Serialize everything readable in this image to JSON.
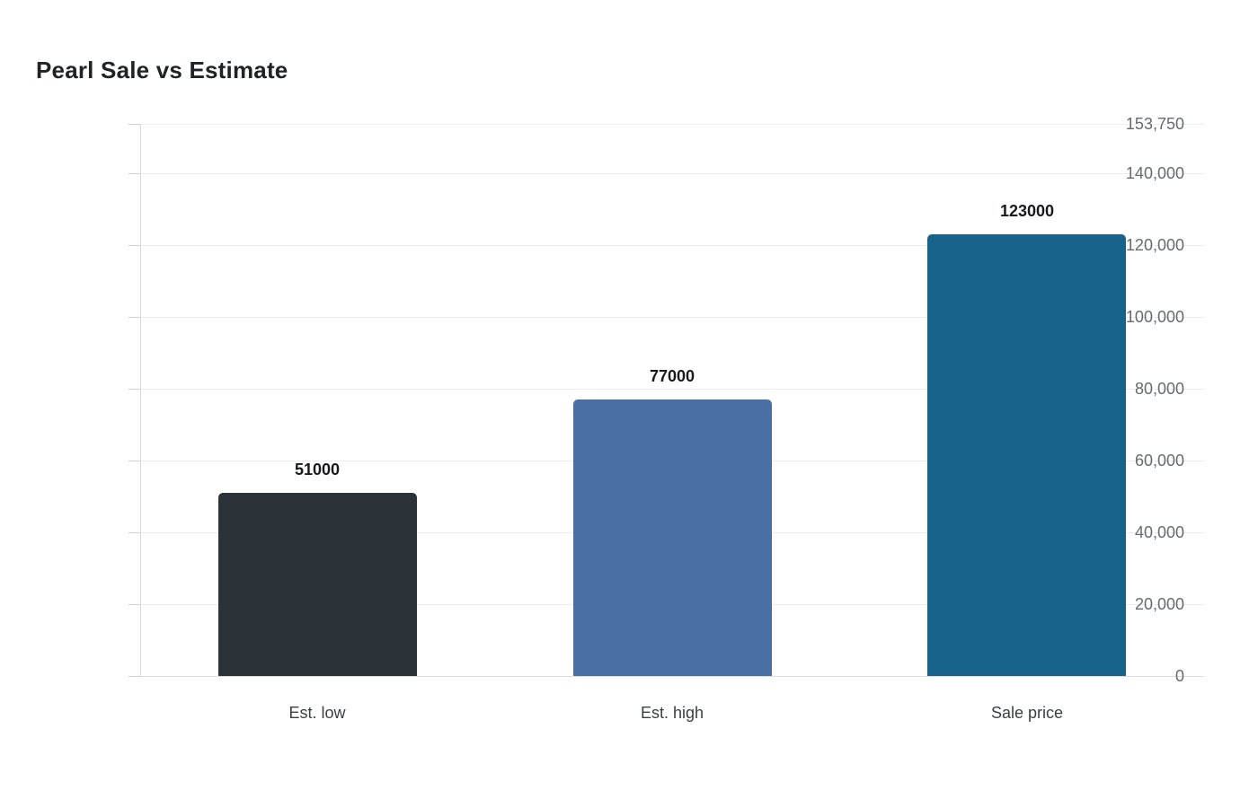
{
  "page": {
    "background_color": "#ffffff"
  },
  "chart_data": {
    "type": "bar",
    "title": "Pearl Sale vs Estimate",
    "categories": [
      "Est. low",
      "Est. high",
      "Sale price"
    ],
    "values": [
      51000,
      77000,
      123000
    ],
    "value_labels": [
      "51000",
      "77000",
      "123000"
    ],
    "bar_colors": [
      "#2b3338",
      "#4a6fa5",
      "#17638c"
    ],
    "xlabel": "",
    "ylabel": "",
    "ylim": [
      0,
      153750
    ],
    "yticks": [
      0,
      20000,
      40000,
      60000,
      80000,
      100000,
      120000,
      140000,
      153750
    ],
    "ytick_labels": [
      "0",
      "20,000",
      "40,000",
      "60,000",
      "80,000",
      "100,000",
      "120,000",
      "140,000",
      "153,750"
    ],
    "grid": "horizontal",
    "legend": "none",
    "title_color": "#1f2328",
    "axis_line_color": "#d9d9d9",
    "gridline_color": "#ededed",
    "tick_label_color": "#666b70",
    "category_label_color": "#3a3f44",
    "value_label_color": "#17191c"
  }
}
